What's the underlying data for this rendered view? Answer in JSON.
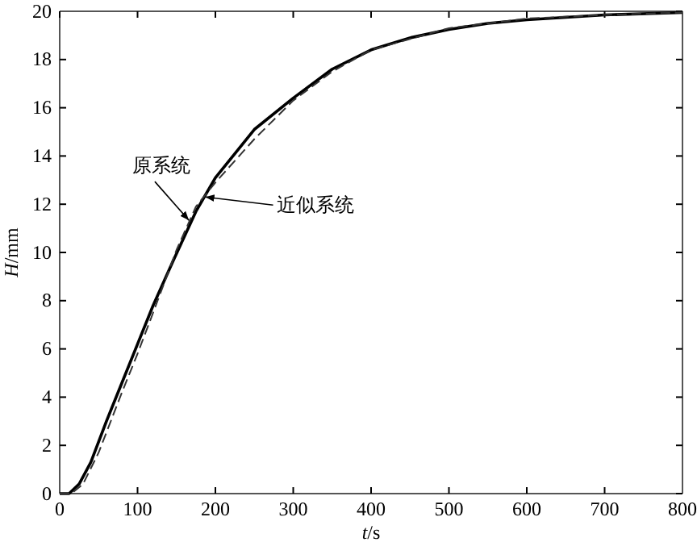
{
  "chart_data": {
    "type": "line",
    "xlabel": "t/s",
    "ylabel": "H/mm",
    "xlim": [
      0,
      800
    ],
    "xticks": [
      0,
      100,
      200,
      300,
      400,
      500,
      600,
      700,
      800
    ],
    "ylim": [
      0,
      20
    ],
    "yticks": [
      0,
      2,
      4,
      6,
      8,
      10,
      12,
      14,
      16,
      18,
      20
    ],
    "grid": false,
    "marker": "none",
    "series": [
      {
        "color": "#000000",
        "line_style": "solid",
        "x": [
          0,
          12,
          25,
          40,
          60,
          80,
          100,
          120,
          145,
          175,
          200,
          250,
          300,
          350,
          400,
          450,
          500,
          550,
          600,
          700,
          800
        ],
        "values": [
          0,
          0,
          0.4,
          1.3,
          3,
          4.6,
          6.2,
          7.8,
          9.6,
          11.7,
          13.1,
          15.1,
          16.4,
          17.6,
          18.4,
          18.9,
          19.25,
          19.5,
          19.65,
          19.85,
          19.95
        ]
      },
      {
        "color": "#333333",
        "line_style": "dashed",
        "x": [
          0,
          15,
          30,
          50,
          80,
          100,
          120,
          150,
          175,
          200,
          250,
          300,
          350,
          400,
          500,
          600,
          700,
          800
        ],
        "values": [
          0,
          0,
          0.4,
          1.7,
          4.2,
          5.8,
          7.5,
          10.1,
          11.9,
          12.9,
          14.7,
          16.3,
          17.5,
          18.4,
          19.3,
          19.7,
          19.85,
          19.95
        ]
      }
    ],
    "annotations": [
      {
        "text": "原系统",
        "x": 168,
        "y": 11.2
      },
      {
        "text": "近似系统",
        "x": 185,
        "y": 12.3
      }
    ]
  }
}
